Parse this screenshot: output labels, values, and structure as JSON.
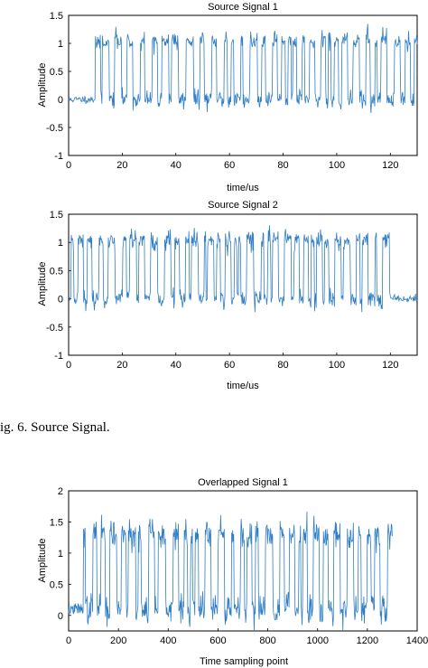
{
  "caption": "ig. 6.   Source Signal.",
  "chart_data": [
    {
      "type": "line",
      "title": "Source Signal 1",
      "xlabel": "time/us",
      "ylabel": "Amplitude",
      "xlim": [
        0,
        130
      ],
      "ylim": [
        -1,
        1.5
      ],
      "xticks": [
        0,
        20,
        40,
        60,
        80,
        100,
        120
      ],
      "yticks": [
        -1,
        -0.5,
        0,
        0.5,
        1,
        1.5
      ],
      "color": "#2f7dc4",
      "series": [
        {
          "x_range": [
            0,
            130
          ],
          "n_points": 650,
          "signal": {
            "low": 0.0,
            "high": 1.05,
            "noise": 0.08,
            "active_start": 10,
            "active_end": 130,
            "mean_period": 1.6,
            "seed": 11
          }
        }
      ]
    },
    {
      "type": "line",
      "title": "Source Signal 2",
      "xlabel": "time/us",
      "ylabel": "Amplitude",
      "xlim": [
        0,
        130
      ],
      "ylim": [
        -1,
        1.5
      ],
      "xticks": [
        0,
        20,
        40,
        60,
        80,
        100,
        120
      ],
      "yticks": [
        -1,
        -0.5,
        0,
        0.5,
        1,
        1.5
      ],
      "color": "#2f7dc4",
      "series": [
        {
          "x_range": [
            0,
            130
          ],
          "n_points": 650,
          "signal": {
            "low": 0.0,
            "high": 1.05,
            "noise": 0.08,
            "active_start": 1,
            "active_end": 120,
            "mean_period": 1.6,
            "seed": 23
          }
        }
      ]
    },
    {
      "type": "line",
      "title": "Overlapped Signal 1",
      "xlabel": "Time sampling point",
      "ylabel": "Amplitude",
      "xlim": [
        0,
        1400
      ],
      "ylim": [
        -0.25,
        2
      ],
      "xticks": [
        0,
        200,
        400,
        600,
        800,
        1000,
        1200,
        1400
      ],
      "yticks": [
        0,
        0.5,
        1,
        1.5,
        2
      ],
      "color": "#2f7dc4",
      "series": [
        {
          "x_range": [
            0,
            1300
          ],
          "n_points": 650,
          "signal": {
            "low": 0.1,
            "high": 1.3,
            "noise": 0.12,
            "active_start": 60,
            "active_end": 1300,
            "mean_period": 18,
            "seed": 37
          }
        }
      ]
    }
  ]
}
